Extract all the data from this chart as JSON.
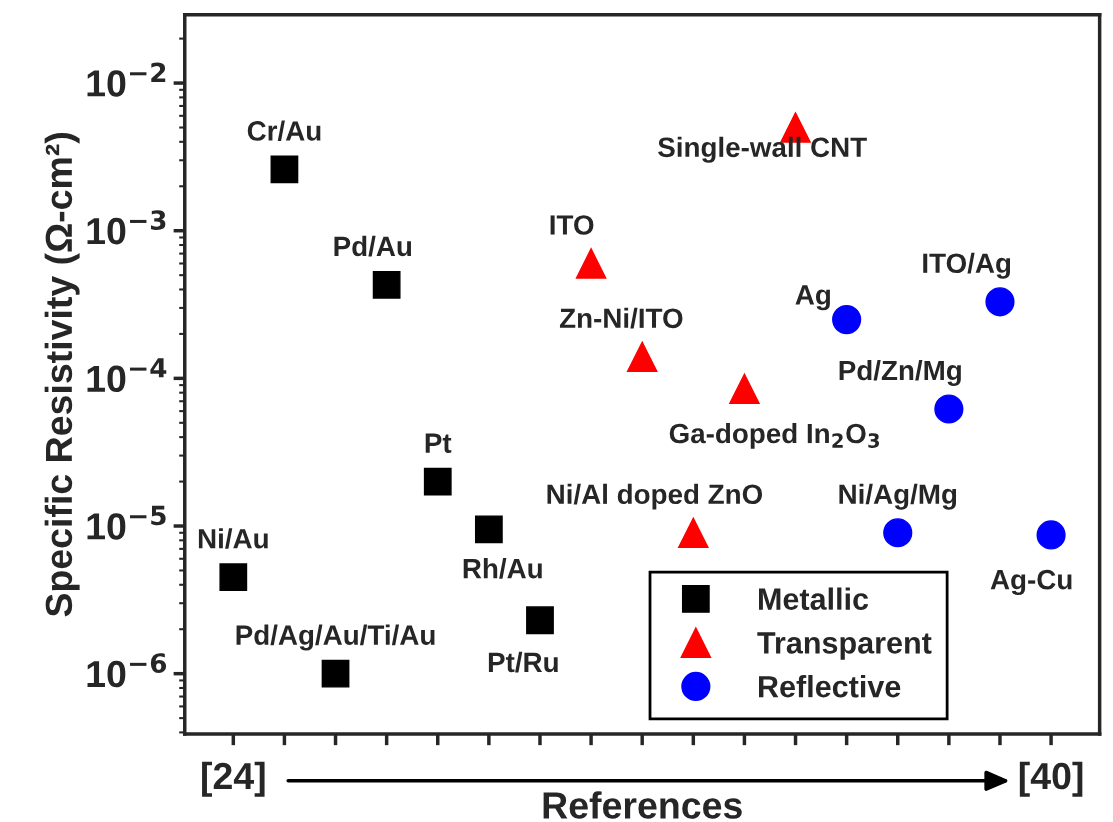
{
  "chart_data": {
    "type": "scatter",
    "xlabel": "References",
    "ylabel": "Specific Resistivity (Ω-cm²)",
    "log": "y",
    "xlim": [
      23.05,
      40.95
    ],
    "ylim": [
      3.9e-07,
      0.029
    ],
    "xticks": [
      {
        "value": 24,
        "label": "[24]"
      },
      {
        "value": 25,
        "label": null
      },
      {
        "value": 26,
        "label": null
      },
      {
        "value": 27,
        "label": null
      },
      {
        "value": 28,
        "label": null
      },
      {
        "value": 29,
        "label": null
      },
      {
        "value": 30,
        "label": null
      },
      {
        "value": 31,
        "label": null
      },
      {
        "value": 32,
        "label": null
      },
      {
        "value": 33,
        "label": null
      },
      {
        "value": 34,
        "label": null
      },
      {
        "value": 35,
        "label": null
      },
      {
        "value": 36,
        "label": null
      },
      {
        "value": 37,
        "label": null
      },
      {
        "value": 38,
        "label": null
      },
      {
        "value": 39,
        "label": null
      },
      {
        "value": 40,
        "label": "[40]"
      }
    ],
    "yticks": [
      {
        "value": 1e-06,
        "label": "10$^{−6}$"
      },
      {
        "value": 1e-05,
        "label": "10$^{−5}$"
      },
      {
        "value": 0.0001,
        "label": "10$^{−4}$"
      },
      {
        "value": 0.001,
        "label": "10$^{−3}$"
      },
      {
        "value": 0.01,
        "label": "10$^{−2}$"
      }
    ],
    "grid": false,
    "legend": "bottom right",
    "series": [
      {
        "name": "Metallic",
        "color": "#000000",
        "marker": "square",
        "x": [
          24,
          25,
          26,
          27,
          28,
          29,
          30
        ],
        "values": [
          4.5e-06,
          0.0026,
          1e-06,
          0.00043,
          2e-05,
          9.5e-06,
          2.3e-06
        ]
      },
      {
        "name": "Transparent",
        "color": "#ff0000",
        "marker": "triangle",
        "x": [
          31,
          32,
          33,
          34,
          35
        ],
        "values": [
          0.0006,
          0.00014,
          9e-06,
          8.5e-05,
          0.005
        ]
      },
      {
        "name": "Reflective",
        "color": "#0000ff",
        "marker": "circle",
        "x": [
          36,
          37,
          38,
          39,
          40
        ],
        "values": [
          0.00025,
          9e-06,
          6.2e-05,
          0.00033,
          8.7e-06
        ]
      }
    ],
    "annotations": [
      {
        "text": "Ni/Au",
        "x": 24,
        "y": 4.5e-06
      },
      {
        "text": "Cr/Au",
        "x": 25,
        "y": 0.0026
      },
      {
        "text": "Pd/Ag/Au/Ti/Au",
        "x": 26,
        "y": 1e-06
      },
      {
        "text": "Pd/Au",
        "x": 27,
        "y": 0.00043
      },
      {
        "text": "Pt",
        "x": 28,
        "y": 2e-05
      },
      {
        "text": "Rh/Au",
        "x": 29,
        "y": 9.5e-06
      },
      {
        "text": "Pt/Ru",
        "x": 30,
        "y": 2.3e-06
      },
      {
        "text": "ITO",
        "x": 31,
        "y": 0.0006
      },
      {
        "text": "Zn-Ni/ITO",
        "x": 32,
        "y": 0.00014
      },
      {
        "text": "Ni/Al doped ZnO",
        "x": 33,
        "y": 9e-06
      },
      {
        "text": "Ga-doped In$_{2}$O$_{3}$",
        "x": 34,
        "y": 8.5e-05
      },
      {
        "text": "Single-wall CNT",
        "x": 35,
        "y": 0.005
      },
      {
        "text": "Ag",
        "x": 36,
        "y": 0.00025
      },
      {
        "text": "Ni/Ag/Mg",
        "x": 37,
        "y": 9e-06
      },
      {
        "text": "Pd/Zn/Mg",
        "x": 38,
        "y": 6.2e-05
      },
      {
        "text": "ITO/Ag",
        "x": 39,
        "y": 0.00033
      },
      {
        "text": "Ag-Cu",
        "x": 40,
        "y": 8.7e-06
      }
    ]
  }
}
